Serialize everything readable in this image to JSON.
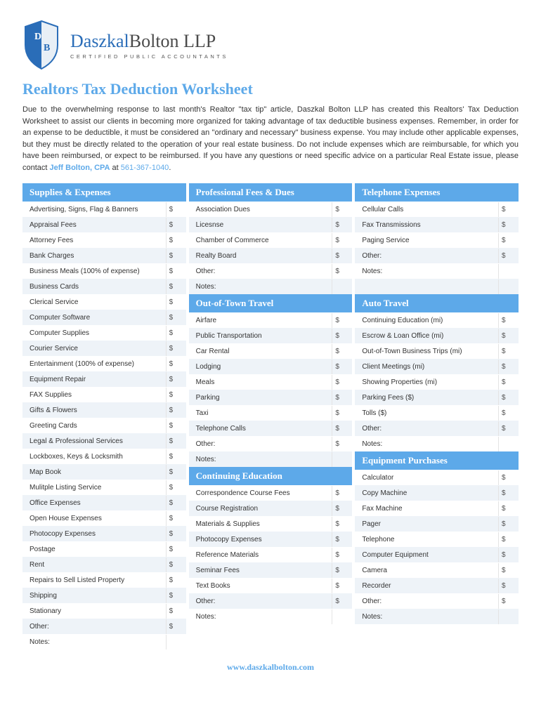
{
  "brand": {
    "first": "Daszkal",
    "rest": "Bolton LLP",
    "tagline": "CERTIFIED PUBLIC ACCOUNTANTS"
  },
  "title": "Realtors Tax Deduction Worksheet",
  "intro_text": "Due to the overwhelming response to last month's Realtor \"tax tip\" article, Daszkal Bolton LLP has created this Realtors' Tax Deduction Worksheet to assist our clients in becoming more organized for taking advantage of tax deductible business expenses. Remember, in order for an expense to be deductible, it must be considered an \"ordinary and necessary\" business expense. You may include other applicable expenses, but they must be directly related to the operation of your real estate business. Do not include expenses which are reimbursable, for which you have been reimbursed, or expect to be reimbursed. If you have any questions or need specific advice on a particular Real Estate issue, please contact",
  "contact_name": "Jeff Bolton, CPA",
  "contact_join": " at ",
  "contact_phone": "561-367-1040",
  "sections": {
    "supplies": {
      "title": "Supplies & Expenses",
      "items": [
        "Advertising, Signs, Flag & Banners",
        "Appraisal Fees",
        "Attorney Fees",
        "Bank Charges",
        "Business Meals (100% of expense)",
        "Business Cards",
        "Clerical Service",
        "Computer Software",
        "Computer Supplies",
        "Courier Service",
        "Entertainment (100% of expense)",
        "Equipment Repair",
        "FAX Supplies",
        "Gifts & Flowers",
        "Greeting Cards",
        "Legal & Professional Services",
        "Lockboxes, Keys & Locksmith",
        "Map Book",
        "Mulitple Listing Service",
        "Office Expenses",
        "Open House Expenses",
        "Photocopy Expenses",
        "Postage",
        "Rent",
        "Repairs to Sell Listed Property",
        "Shipping",
        "Stationary",
        "Other:",
        "Notes:"
      ]
    },
    "fees": {
      "title": "Professional Fees & Dues",
      "items": [
        "Association Dues",
        "Licesnse",
        "Chamber of Commerce",
        "Realty Board",
        "Other:",
        "Notes:"
      ]
    },
    "telephone": {
      "title": "Telephone Expenses",
      "items": [
        "Cellular Calls",
        "Fax Transmissions",
        "Paging Service",
        "Other:",
        "Notes:"
      ]
    },
    "travel": {
      "title": "Out-of-Town Travel",
      "items": [
        "Airfare",
        "Public Transportation",
        "Car Rental",
        "Lodging",
        "Meals",
        "Parking",
        "Taxi",
        "Telephone Calls",
        "Other:",
        "Notes:"
      ]
    },
    "auto": {
      "title": "Auto Travel",
      "items": [
        "Continuing Education (mi)",
        "Escrow & Loan Office (mi)",
        "Out-of-Town Business Trips (mi)",
        "Client Meetings (mi)",
        "Showing Properties (mi)",
        "Parking Fees ($)",
        "Tolls ($)",
        "Other:",
        "Notes:"
      ]
    },
    "education": {
      "title": "Continuing Education",
      "items": [
        "Correspondence Course Fees",
        "Course Registration",
        "Materials & Supplies",
        "Photocopy Expenses",
        "Reference Materials",
        "Seminar Fees",
        "Text Books",
        "Other:",
        "Notes:"
      ]
    },
    "equipment": {
      "title": "Equipment Purchases",
      "items": [
        "Calculator",
        "Copy Machine",
        "Fax Machine",
        "Pager",
        "Telephone",
        "Computer Equipment",
        "Camera",
        "Recorder",
        "Other:",
        "Notes:"
      ]
    }
  },
  "footer": "www.daszkalbolton.com",
  "colors": {
    "accent": "#5da9e9",
    "brand_blue": "#2a6db8",
    "stripe": "#eef3f8"
  }
}
